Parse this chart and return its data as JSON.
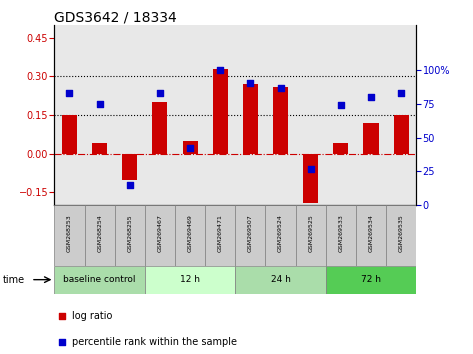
{
  "title": "GDS3642 / 18334",
  "samples": [
    "GSM268253",
    "GSM268254",
    "GSM268255",
    "GSM269467",
    "GSM269469",
    "GSM269471",
    "GSM269507",
    "GSM269524",
    "GSM269525",
    "GSM269533",
    "GSM269534",
    "GSM269535"
  ],
  "log_ratio": [
    0.15,
    0.04,
    -0.1,
    0.2,
    0.05,
    0.33,
    0.27,
    0.26,
    -0.19,
    0.04,
    0.12,
    0.15
  ],
  "percentile_rank": [
    83,
    75,
    15,
    83,
    42,
    100,
    90,
    87,
    27,
    74,
    80,
    83
  ],
  "ylim_left": [
    -0.2,
    0.5
  ],
  "ylim_right": [
    0,
    133.33
  ],
  "yticks_left": [
    -0.15,
    0.0,
    0.15,
    0.3,
    0.45
  ],
  "yticks_right": [
    0,
    25,
    50,
    75,
    100
  ],
  "hlines": [
    0.15,
    0.3
  ],
  "bar_color": "#CC0000",
  "dot_color": "#0000CC",
  "zero_line_color": "#CC0000",
  "hline_color": "black",
  "time_groups": [
    {
      "label": "baseline control",
      "start": 0,
      "end": 3,
      "color": "#aaddaa"
    },
    {
      "label": "12 h",
      "start": 3,
      "end": 6,
      "color": "#ccffcc"
    },
    {
      "label": "24 h",
      "start": 6,
      "end": 9,
      "color": "#aaddaa"
    },
    {
      "label": "72 h",
      "start": 9,
      "end": 12,
      "color": "#55cc55"
    }
  ],
  "time_label": "time",
  "legend_log": "log ratio",
  "legend_pct": "percentile rank within the sample",
  "bar_width": 0.5,
  "sample_box_color": "#cccccc",
  "bg_col_color": "#e8e8e8"
}
